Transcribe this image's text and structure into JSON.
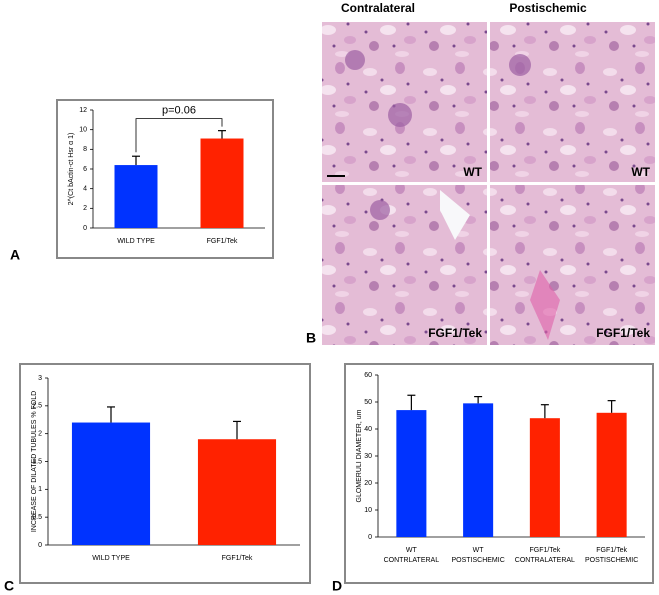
{
  "chart_data": [
    {
      "type": "bar",
      "panel": "A",
      "y_label": "2^(Ct bActin-ct Hsr α 1)",
      "categories": [
        [
          "WILD TYPE"
        ],
        [
          "FGF1/Tek"
        ]
      ],
      "values": [
        6.4,
        9.1
      ],
      "errors": [
        0.9,
        0.8
      ],
      "colors": [
        "#0033ff",
        "#ff2200"
      ],
      "ylim": [
        0,
        12
      ],
      "yticks": [
        0,
        2,
        4,
        6,
        8,
        10,
        12
      ],
      "annotation": "p=0.06"
    },
    {
      "type": "bar",
      "panel": "C",
      "y_label": "INCREASE OF DILATED TUBULES % FOLD",
      "categories": [
        [
          "WILD TYPE"
        ],
        [
          "FGF1/Tek"
        ]
      ],
      "values": [
        2.2,
        1.9
      ],
      "errors": [
        0.28,
        0.32
      ],
      "colors": [
        "#0033ff",
        "#ff2200"
      ],
      "ylim": [
        0,
        3
      ],
      "yticks": [
        0,
        0.5,
        1,
        1.5,
        2,
        2.5,
        3
      ]
    },
    {
      "type": "bar",
      "panel": "D",
      "y_label": "GLOMERULI DIAMETER, um",
      "categories": [
        [
          "WT",
          "CONTRLATERAL"
        ],
        [
          "WT",
          "POSTISCHEMIC"
        ],
        [
          "FGF1/Tek",
          "CONTRALATERAL"
        ],
        [
          "FGF1/Tek",
          "POSTISCHEMIC"
        ]
      ],
      "values": [
        47,
        49.5,
        44,
        46
      ],
      "errors": [
        5.5,
        2.5,
        5,
        4.5
      ],
      "colors": [
        "#0033ff",
        "#0033ff",
        "#ff2200",
        "#ff2200"
      ],
      "ylim": [
        0,
        60
      ],
      "yticks": [
        0,
        10,
        20,
        30,
        40,
        50,
        60
      ]
    }
  ],
  "histology": {
    "panel": "B",
    "columns": [
      "Contralateral",
      "Postischemic"
    ],
    "images": [
      "WT",
      "WT",
      "FGF1/Tek",
      "FGF1/Tek"
    ]
  }
}
